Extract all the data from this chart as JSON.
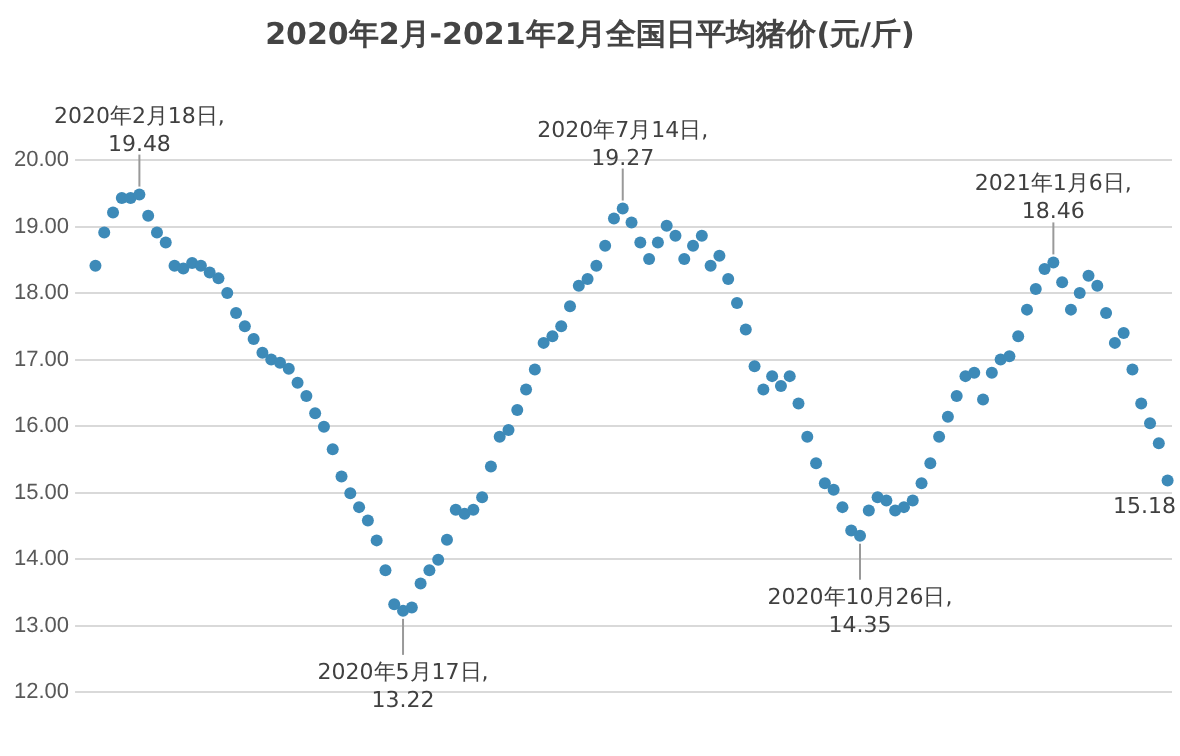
{
  "chart_data": {
    "type": "scatter",
    "title": "2020年2月-2021年2月全国日平均猪价(元/斤)",
    "categories": [
      null,
      null,
      null,
      null,
      null,
      null,
      null,
      null,
      null,
      null,
      null,
      null,
      null,
      null,
      null,
      null,
      null,
      null,
      null,
      null,
      null,
      null,
      null,
      null,
      null,
      null,
      null,
      null,
      null,
      null,
      null,
      null,
      null,
      null,
      null,
      null,
      null,
      null,
      null,
      null,
      null,
      null,
      null,
      null,
      null,
      null,
      null,
      null,
      null,
      null,
      null,
      null,
      null,
      null,
      null,
      null,
      null,
      null,
      null,
      null,
      null,
      null,
      null,
      null,
      null,
      null,
      null,
      null,
      null,
      null,
      null,
      null,
      null,
      null,
      null,
      null,
      null,
      null,
      null,
      null,
      null,
      null,
      null,
      null,
      null,
      null,
      null,
      null,
      null,
      null,
      null,
      null,
      null,
      null,
      null,
      null,
      null,
      null,
      null,
      null,
      null,
      null,
      null,
      null,
      null,
      null,
      null,
      null,
      null,
      null,
      null,
      null,
      null,
      null,
      null,
      null,
      null,
      null,
      null,
      null,
      null,
      null,
      null
    ],
    "values": [
      18.41,
      18.91,
      19.21,
      19.43,
      19.43,
      19.48,
      19.16,
      18.91,
      18.76,
      18.41,
      18.37,
      18.45,
      18.41,
      18.31,
      18.22,
      18.0,
      17.7,
      17.5,
      17.31,
      17.1,
      17.0,
      16.95,
      16.86,
      16.65,
      16.45,
      16.19,
      15.99,
      15.65,
      15.24,
      14.99,
      14.78,
      14.58,
      14.28,
      13.83,
      13.32,
      13.22,
      13.27,
      13.63,
      13.83,
      13.99,
      14.29,
      14.74,
      14.68,
      14.74,
      14.93,
      15.39,
      15.84,
      15.94,
      16.24,
      16.55,
      16.85,
      17.25,
      17.35,
      17.5,
      17.8,
      18.11,
      18.21,
      18.41,
      18.71,
      19.12,
      19.27,
      19.06,
      18.76,
      18.51,
      18.76,
      19.01,
      18.86,
      18.51,
      18.71,
      18.86,
      18.41,
      18.56,
      18.21,
      17.85,
      17.45,
      16.9,
      16.55,
      16.75,
      16.6,
      16.75,
      16.34,
      15.84,
      15.44,
      15.14,
      15.04,
      14.78,
      14.43,
      14.35,
      14.73,
      14.93,
      14.88,
      14.73,
      14.78,
      14.88,
      15.14,
      15.44,
      15.84,
      16.14,
      16.45,
      16.75,
      16.8,
      16.4,
      16.8,
      17.0,
      17.05,
      17.35,
      17.75,
      18.06,
      18.36,
      18.46,
      18.16,
      17.75,
      18.0,
      18.26,
      18.11,
      17.7,
      17.25,
      17.4,
      16.85,
      16.34,
      16.04,
      15.74,
      15.18
    ],
    "color": "#3d8ab8",
    "marker": "circle",
    "grid": "y",
    "legend": false,
    "tick_labels": "y",
    "ylim": [
      12,
      20
    ],
    "yticks": [
      {
        "value": 12,
        "label": "12.00"
      },
      {
        "value": 13,
        "label": "13.00"
      },
      {
        "value": 14,
        "label": "14.00"
      },
      {
        "value": 15,
        "label": "15.00"
      },
      {
        "value": 16,
        "label": "16.00"
      },
      {
        "value": 17,
        "label": "17.00"
      },
      {
        "value": 18,
        "label": "18.00"
      },
      {
        "value": 19,
        "label": "19.00"
      },
      {
        "value": 20,
        "label": "20.00"
      }
    ],
    "annotations": [
      {
        "text": "2020年2月18日,\n19.48",
        "y": 19.48
      },
      {
        "text": "2020年5月17日,\n13.22",
        "y": 13.22
      },
      {
        "text": "2020年7月14日,\n19.27",
        "y": 19.27
      },
      {
        "text": "2020年10月26日,\n14.35",
        "y": 14.35
      },
      {
        "text": "2021年1月6日,\n18.46",
        "y": 18.46
      },
      "15.18"
    ]
  }
}
